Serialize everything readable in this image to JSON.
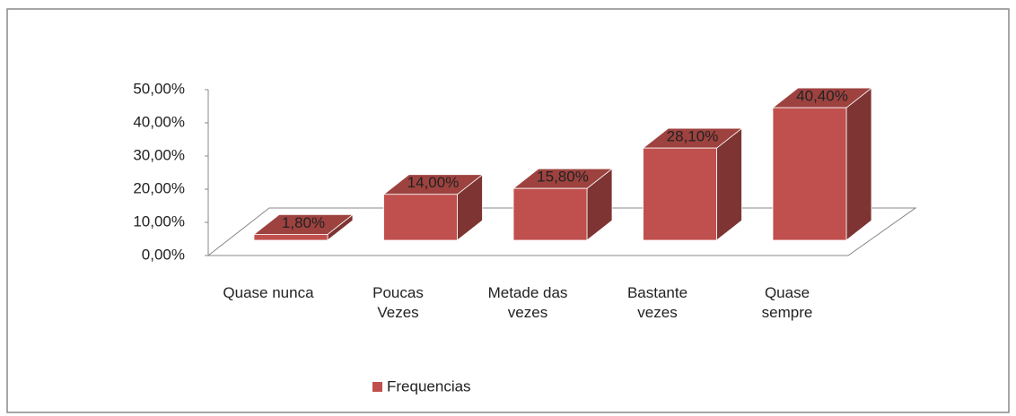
{
  "chart_data": {
    "type": "bar3d",
    "categories": [
      "Quase nunca",
      "Poucas\nVezes",
      "Metade das\nvezes",
      "Bastante\nvezes",
      "Quase\nsempre"
    ],
    "series": [
      {
        "name": "Frequencias",
        "color": "#c0504d",
        "values": [
          1.8,
          14.0,
          15.8,
          28.1,
          40.4
        ],
        "value_labels": [
          "1,80%",
          "14,00%",
          "15,80%",
          "28,10%",
          "40,40%"
        ]
      }
    ],
    "ylim": [
      0,
      50
    ],
    "yticks": [
      {
        "value": 0,
        "label": "0,00%"
      },
      {
        "value": 10,
        "label": "10,00%"
      },
      {
        "value": 20,
        "label": "20,00%"
      },
      {
        "value": 30,
        "label": "30,00%"
      },
      {
        "value": 40,
        "label": "40,00%"
      },
      {
        "value": 50,
        "label": "50,00%"
      }
    ],
    "legend": "bottom"
  }
}
